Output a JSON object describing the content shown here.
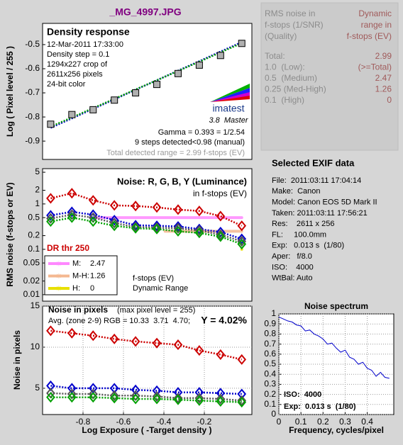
{
  "page_title": "_MG_4997.JPG",
  "dr_table": {
    "header_left": [
      "RMS noise in",
      "f-stops (1/SNR)",
      "(Quality)"
    ],
    "header_right": [
      "Dynamic",
      "range in",
      "f-stops (EV)"
    ],
    "rows": [
      [
        "Total:",
        2.99
      ],
      [
        "1.0  (Low):",
        "(>=Total)"
      ],
      [
        "0.5  (Medium)",
        2.47
      ],
      [
        "0.25 (Med-High)",
        1.26
      ],
      [
        "0.1  (High)",
        0
      ]
    ]
  },
  "exif": {
    "title": "Selected EXIF data",
    "lines": [
      "File:  2011:03:11 17:04:14",
      "Make:  Canon",
      "Model: Canon EOS 5D Mark II",
      "Taken: 2011:03:11 17:56:21",
      "Res:    2611 x 256",
      "FL:     100.0mm",
      "Exp:   0.013 s  (1/80)",
      "Aper:   f/8.0",
      "ISO:    4000",
      "WtBal: Auto"
    ]
  },
  "chart_data": [
    {
      "type": "line",
      "title": "Density response",
      "ylabel": "Log ( Pixel level / 255 )",
      "annotations": [
        "12-Mar-2011 17:33:00",
        "Density step = 0.1",
        "1294x227 crop of",
        "2611x256 pixels",
        "24-bit color",
        "Gamma = 0.393 = 1/2.54",
        "9 steps detected<0.98 (manual)",
        "Total detected range = 2.99 f-stops (EV)"
      ],
      "logo": [
        "imatest",
        "3.8  Master"
      ],
      "x": [
        -0.96,
        -0.855,
        -0.75,
        -0.645,
        -0.54,
        -0.435,
        -0.33,
        -0.225,
        -0.12,
        -0.015
      ],
      "series": [
        {
          "color": "#0000cc",
          "marker": "none",
          "line": "dotted",
          "values": [
            -0.845,
            -0.806,
            -0.766,
            -0.727,
            -0.687,
            -0.648,
            -0.608,
            -0.569,
            -0.529,
            -0.49
          ]
        },
        {
          "color": "#00a000",
          "marker": "none",
          "line": "dotted",
          "values": [
            -0.84,
            -0.802,
            -0.763,
            -0.725,
            -0.686,
            -0.648,
            -0.609,
            -0.571,
            -0.532,
            -0.494
          ]
        },
        {
          "color": "#b0b0b0",
          "marker": "square",
          "line": "none",
          "values": [
            -0.83,
            -0.79,
            -0.77,
            -0.73,
            -0.7,
            -0.665,
            -0.62,
            -0.585,
            -0.545,
            -0.495
          ]
        }
      ],
      "xlim": [
        -1.0,
        0.035
      ],
      "ylim": [
        -0.976,
        -0.412
      ],
      "yticks": [
        -0.5,
        -0.6,
        -0.7,
        -0.8,
        -0.9
      ]
    },
    {
      "type": "line",
      "title": "Noise: R, G, B, Y (Luminance)",
      "subtitle": "in f-stops (EV)",
      "ylabel": "RMS noise (f-stops or EV)",
      "log_y": true,
      "annotations": [
        "DR thr 250",
        "f-stops (EV)",
        "Dynamic Range"
      ],
      "x": [
        -0.96,
        -0.855,
        -0.75,
        -0.645,
        -0.54,
        -0.435,
        -0.33,
        -0.225,
        -0.12,
        -0.015
      ],
      "series": [
        {
          "color": "#cc0000",
          "marker": "diamond",
          "line": "dotted",
          "values": [
            1.33,
            1.72,
            1.2,
            0.93,
            0.9,
            0.84,
            0.75,
            0.7,
            0.54,
            0.33
          ]
        },
        {
          "color": "#0000cc",
          "marker": "diamond",
          "line": "dotted",
          "values": [
            0.56,
            0.67,
            0.58,
            0.44,
            0.34,
            0.33,
            0.32,
            0.28,
            0.24,
            0.17
          ]
        },
        {
          "color": "#555555",
          "marker": "diamond",
          "line": "dotted",
          "values": [
            0.48,
            0.58,
            0.5,
            0.38,
            0.31,
            0.3,
            0.29,
            0.26,
            0.21,
            0.15
          ]
        },
        {
          "color": "#00a000",
          "marker": "diamond",
          "line": "dotted",
          "values": [
            0.41,
            0.5,
            0.41,
            0.33,
            0.29,
            0.28,
            0.25,
            0.23,
            0.19,
            0.13
          ]
        }
      ],
      "thresholds": [
        {
          "name": "M:",
          "color": "#ff88ff",
          "threshold": 0.5,
          "range": 2.47
        },
        {
          "name": "M-H:",
          "color": "#f4b890",
          "threshold": 0.25,
          "range": 1.26
        },
        {
          "name": "H:",
          "color": "#e8e000",
          "threshold": 0.1,
          "range": 0
        }
      ],
      "xlim": [
        -1.0,
        0.035
      ],
      "ylim": [
        0.0072,
        6
      ],
      "yticks": [
        5,
        2,
        1,
        0.5,
        0.2,
        0.1,
        0.05,
        0.02,
        0.01
      ]
    },
    {
      "type": "line",
      "title": "Noise in pixels",
      "subtitle": "(max pixel level = 255)",
      "ylabel": "Noise in pixels",
      "xlabel": "Log Exposure ( -Target density )",
      "annotations": [
        "Avg. (zone 2-9) RGB = 10.33  3.71  4.70;",
        "Y = 4.02%"
      ],
      "x": [
        -0.96,
        -0.855,
        -0.75,
        -0.645,
        -0.54,
        -0.435,
        -0.33,
        -0.225,
        -0.12,
        -0.015
      ],
      "series": [
        {
          "color": "#cc0000",
          "marker": "diamond",
          "line": "dotted",
          "values": [
            12.0,
            11.7,
            11.4,
            11.0,
            10.7,
            10.5,
            10.3,
            9.6,
            9.1,
            8.5
          ]
        },
        {
          "color": "#0000cc",
          "marker": "diamond",
          "line": "dotted",
          "values": [
            5.3,
            5.0,
            5.0,
            5.0,
            4.8,
            4.7,
            4.5,
            4.5,
            4.4,
            4.3
          ]
        },
        {
          "color": "#555555",
          "marker": "diamond",
          "line": "dotted",
          "values": [
            4.4,
            4.3,
            4.3,
            4.1,
            4.1,
            4.0,
            3.8,
            3.8,
            3.7,
            3.5
          ]
        },
        {
          "color": "#00a000",
          "marker": "diamond",
          "line": "dotted",
          "values": [
            3.9,
            3.9,
            3.9,
            3.8,
            3.7,
            3.7,
            3.6,
            3.5,
            3.4,
            3.3
          ]
        }
      ],
      "xlim": [
        -1.0,
        0.035
      ],
      "ylim": [
        1.8,
        15
      ],
      "yticks": [
        5,
        10,
        15
      ],
      "xticks": [
        -0.8,
        -0.6,
        -0.4,
        -0.2
      ],
      "grid": true
    },
    {
      "type": "line",
      "title": "Noise spectrum",
      "xlabel": "Frequency, cycles/pixel",
      "annotations": [
        "ISO:  4000",
        "Exp:  0.013 s  (1/80)"
      ],
      "x": [
        0,
        0.02,
        0.04,
        0.06,
        0.08,
        0.1,
        0.12,
        0.14,
        0.16,
        0.18,
        0.2,
        0.22,
        0.24,
        0.26,
        0.28,
        0.3,
        0.32,
        0.34,
        0.36,
        0.38,
        0.4,
        0.42,
        0.44,
        0.46,
        0.48,
        0.5
      ],
      "series": [
        {
          "color": "#0000cc",
          "marker": "none",
          "line": "solid",
          "values": [
            0.97,
            0.95,
            0.93,
            0.92,
            0.89,
            0.88,
            0.83,
            0.84,
            0.8,
            0.78,
            0.75,
            0.7,
            0.71,
            0.66,
            0.62,
            0.64,
            0.57,
            0.55,
            0.5,
            0.52,
            0.46,
            0.44,
            0.38,
            0.42,
            0.37,
            0.36
          ]
        }
      ],
      "xlim": [
        0,
        0.52
      ],
      "ylim": [
        0,
        1
      ],
      "yticks": [
        0,
        0.1,
        0.2,
        0.3,
        0.4,
        0.5,
        0.6,
        0.7,
        0.8,
        0.9,
        1
      ],
      "xticks": [
        0,
        0.1,
        0.2,
        0.3,
        0.4
      ],
      "grid": true
    }
  ]
}
